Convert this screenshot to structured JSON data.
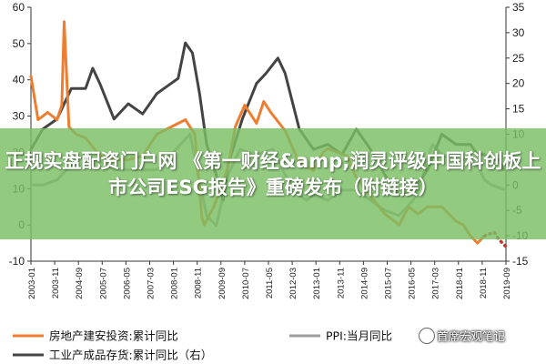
{
  "banner": {
    "title": "正规实盘配资门户网 《第一财经&amp;润灵评级中国科创板上市公司ESG报告》重磅发布（附链接）"
  },
  "watermark": {
    "text": "首席宏观笔记",
    "icon": "wechat-icon"
  },
  "chart_data": {
    "type": "line",
    "title": "",
    "x_ticks": [
      "2003-01",
      "2003-11",
      "2004-09",
      "2005-07",
      "2006-05",
      "2007-03",
      "2008-01",
      "2008-11",
      "2009-09",
      "2010-07",
      "2011-05",
      "2012-03",
      "2013-01",
      "2013-11",
      "2014-09",
      "2015-07",
      "2016-05",
      "2017-03",
      "2018-01",
      "2018-11",
      "2019-09"
    ],
    "y_left": {
      "ticks": [
        -10,
        0,
        10,
        20,
        30,
        40,
        50,
        60
      ],
      "range": [
        -10,
        60
      ]
    },
    "y_right": {
      "ticks": [
        -15,
        -10,
        -5,
        0,
        5,
        10,
        15,
        20,
        25,
        30,
        35
      ],
      "range": [
        -15,
        35
      ]
    },
    "grid": false,
    "legend_position": "bottom",
    "series": [
      {
        "name": "房地产建安投资:累计同比",
        "axis": "left",
        "color": "#ed7d31",
        "style": "solid",
        "points": [
          [
            "2003-01",
            41
          ],
          [
            "2003-04",
            29
          ],
          [
            "2003-08",
            31
          ],
          [
            "2003-12",
            29
          ],
          [
            "2004-02",
            33
          ],
          [
            "2004-03",
            56
          ],
          [
            "2004-05",
            27
          ],
          [
            "2004-08",
            25
          ],
          [
            "2004-12",
            24
          ],
          [
            "2005-06",
            19
          ],
          [
            "2005-12",
            18
          ],
          [
            "2006-06",
            18
          ],
          [
            "2006-12",
            19
          ],
          [
            "2007-06",
            25
          ],
          [
            "2007-12",
            27
          ],
          [
            "2008-06",
            29
          ],
          [
            "2008-10",
            25
          ],
          [
            "2009-01",
            2
          ],
          [
            "2009-02",
            0
          ],
          [
            "2009-06",
            5
          ],
          [
            "2009-12",
            16
          ],
          [
            "2010-03",
            27
          ],
          [
            "2010-07",
            33
          ],
          [
            "2010-12",
            28
          ],
          [
            "2011-03",
            34
          ],
          [
            "2011-06",
            31
          ],
          [
            "2011-12",
            26
          ],
          [
            "2012-06",
            17
          ],
          [
            "2012-12",
            15
          ],
          [
            "2013-04",
            20
          ],
          [
            "2013-06",
            21
          ],
          [
            "2013-10",
            20
          ],
          [
            "2014-02",
            19
          ],
          [
            "2014-06",
            13
          ],
          [
            "2014-12",
            8
          ],
          [
            "2015-06",
            3
          ],
          [
            "2015-12",
            0
          ],
          [
            "2016-04",
            5
          ],
          [
            "2016-08",
            3
          ],
          [
            "2016-12",
            5
          ],
          [
            "2017-06",
            5
          ],
          [
            "2017-12",
            1
          ],
          [
            "2018-03",
            0
          ],
          [
            "2018-06",
            -3
          ],
          [
            "2018-09",
            -5
          ],
          [
            "2018-12",
            -3
          ]
        ]
      },
      {
        "name": "PPI:当月同比",
        "axis": "right",
        "color": "#9e9e9e",
        "style": "solid",
        "points": [
          [
            "2003-01",
            0
          ],
          [
            "2003-06",
            0
          ],
          [
            "2003-12",
            1
          ],
          [
            "2004-04",
            3
          ],
          [
            "2004-08",
            5
          ],
          [
            "2004-12",
            6
          ],
          [
            "2005-03",
            5
          ],
          [
            "2005-09",
            4
          ],
          [
            "2005-12",
            3
          ],
          [
            "2006-06",
            3
          ],
          [
            "2006-12",
            3
          ],
          [
            "2007-06",
            3
          ],
          [
            "2007-12",
            6
          ],
          [
            "2008-04",
            8
          ],
          [
            "2008-08",
            10
          ],
          [
            "2008-11",
            3
          ],
          [
            "2009-03",
            -6
          ],
          [
            "2009-07",
            -8
          ],
          [
            "2009-12",
            2
          ],
          [
            "2010-05",
            7
          ],
          [
            "2010-12",
            6
          ],
          [
            "2011-07",
            7
          ],
          [
            "2011-12",
            2
          ],
          [
            "2012-06",
            -2
          ],
          [
            "2012-09",
            -3
          ],
          [
            "2012-12",
            -2
          ],
          [
            "2013-06",
            -3
          ],
          [
            "2013-12",
            -1
          ],
          [
            "2014-06",
            -1
          ],
          [
            "2014-12",
            -3
          ],
          [
            "2015-06",
            -5
          ],
          [
            "2015-12",
            -6
          ],
          [
            "2016-06",
            -3
          ],
          [
            "2016-09",
            0
          ],
          [
            "2016-12",
            5
          ],
          [
            "2017-02",
            8
          ],
          [
            "2017-06",
            6
          ],
          [
            "2017-12",
            5
          ],
          [
            "2018-06",
            5
          ],
          [
            "2018-10",
            3
          ],
          [
            "2018-12",
            1
          ],
          [
            "2019-03",
            0
          ],
          [
            "2019-09",
            -1
          ]
        ]
      },
      {
        "name": "工业产成品存货:累计同比（右）",
        "axis": "right",
        "color": "#444444",
        "style": "solid",
        "points": [
          [
            "2003-01",
            7
          ],
          [
            "2003-06",
            11
          ],
          [
            "2003-12",
            13
          ],
          [
            "2004-06",
            19
          ],
          [
            "2004-12",
            19
          ],
          [
            "2005-03",
            23
          ],
          [
            "2005-06",
            20
          ],
          [
            "2005-12",
            13
          ],
          [
            "2006-06",
            16
          ],
          [
            "2006-12",
            14
          ],
          [
            "2007-06",
            18
          ],
          [
            "2007-12",
            20
          ],
          [
            "2008-03",
            21
          ],
          [
            "2008-06",
            28
          ],
          [
            "2008-09",
            26
          ],
          [
            "2008-12",
            18
          ],
          [
            "2009-03",
            8
          ],
          [
            "2009-07",
            2
          ],
          [
            "2009-10",
            -3
          ],
          [
            "2009-12",
            4
          ],
          [
            "2010-06",
            13
          ],
          [
            "2010-12",
            20
          ],
          [
            "2011-04",
            22
          ],
          [
            "2011-09",
            25
          ],
          [
            "2011-12",
            22
          ],
          [
            "2012-06",
            11
          ],
          [
            "2012-12",
            7
          ],
          [
            "2013-06",
            8
          ],
          [
            "2013-12",
            6
          ],
          [
            "2014-06",
            11
          ],
          [
            "2014-12",
            7
          ],
          [
            "2015-06",
            2
          ],
          [
            "2015-09",
            0
          ],
          [
            "2015-12",
            -2
          ],
          [
            "2016-06",
            -1
          ],
          [
            "2016-12",
            3
          ],
          [
            "2017-06",
            10
          ],
          [
            "2017-12",
            8
          ],
          [
            "2018-06",
            8
          ],
          [
            "2018-09",
            6
          ],
          [
            "2018-12",
            6
          ],
          [
            "2019-03",
            5
          ],
          [
            "2019-06",
            5
          ],
          [
            "2019-08",
            3
          ]
        ]
      },
      {
        "name": "房地产建安投资:累计同比 (tail)",
        "axis": "left",
        "color": "#c0392b",
        "style": "dotted",
        "points": [
          [
            "2018-12",
            -3
          ],
          [
            "2019-04",
            -2
          ],
          [
            "2019-06",
            -4
          ],
          [
            "2019-09",
            -6
          ]
        ]
      }
    ],
    "legend": [
      {
        "label": "房地产建安投资:累计同比",
        "color": "#ed7d31"
      },
      {
        "label": "PPI:当月同比",
        "color": "#9e9e9e"
      },
      {
        "label": "工业产成品存货:累计同比（右）",
        "color": "#444444"
      }
    ]
  }
}
